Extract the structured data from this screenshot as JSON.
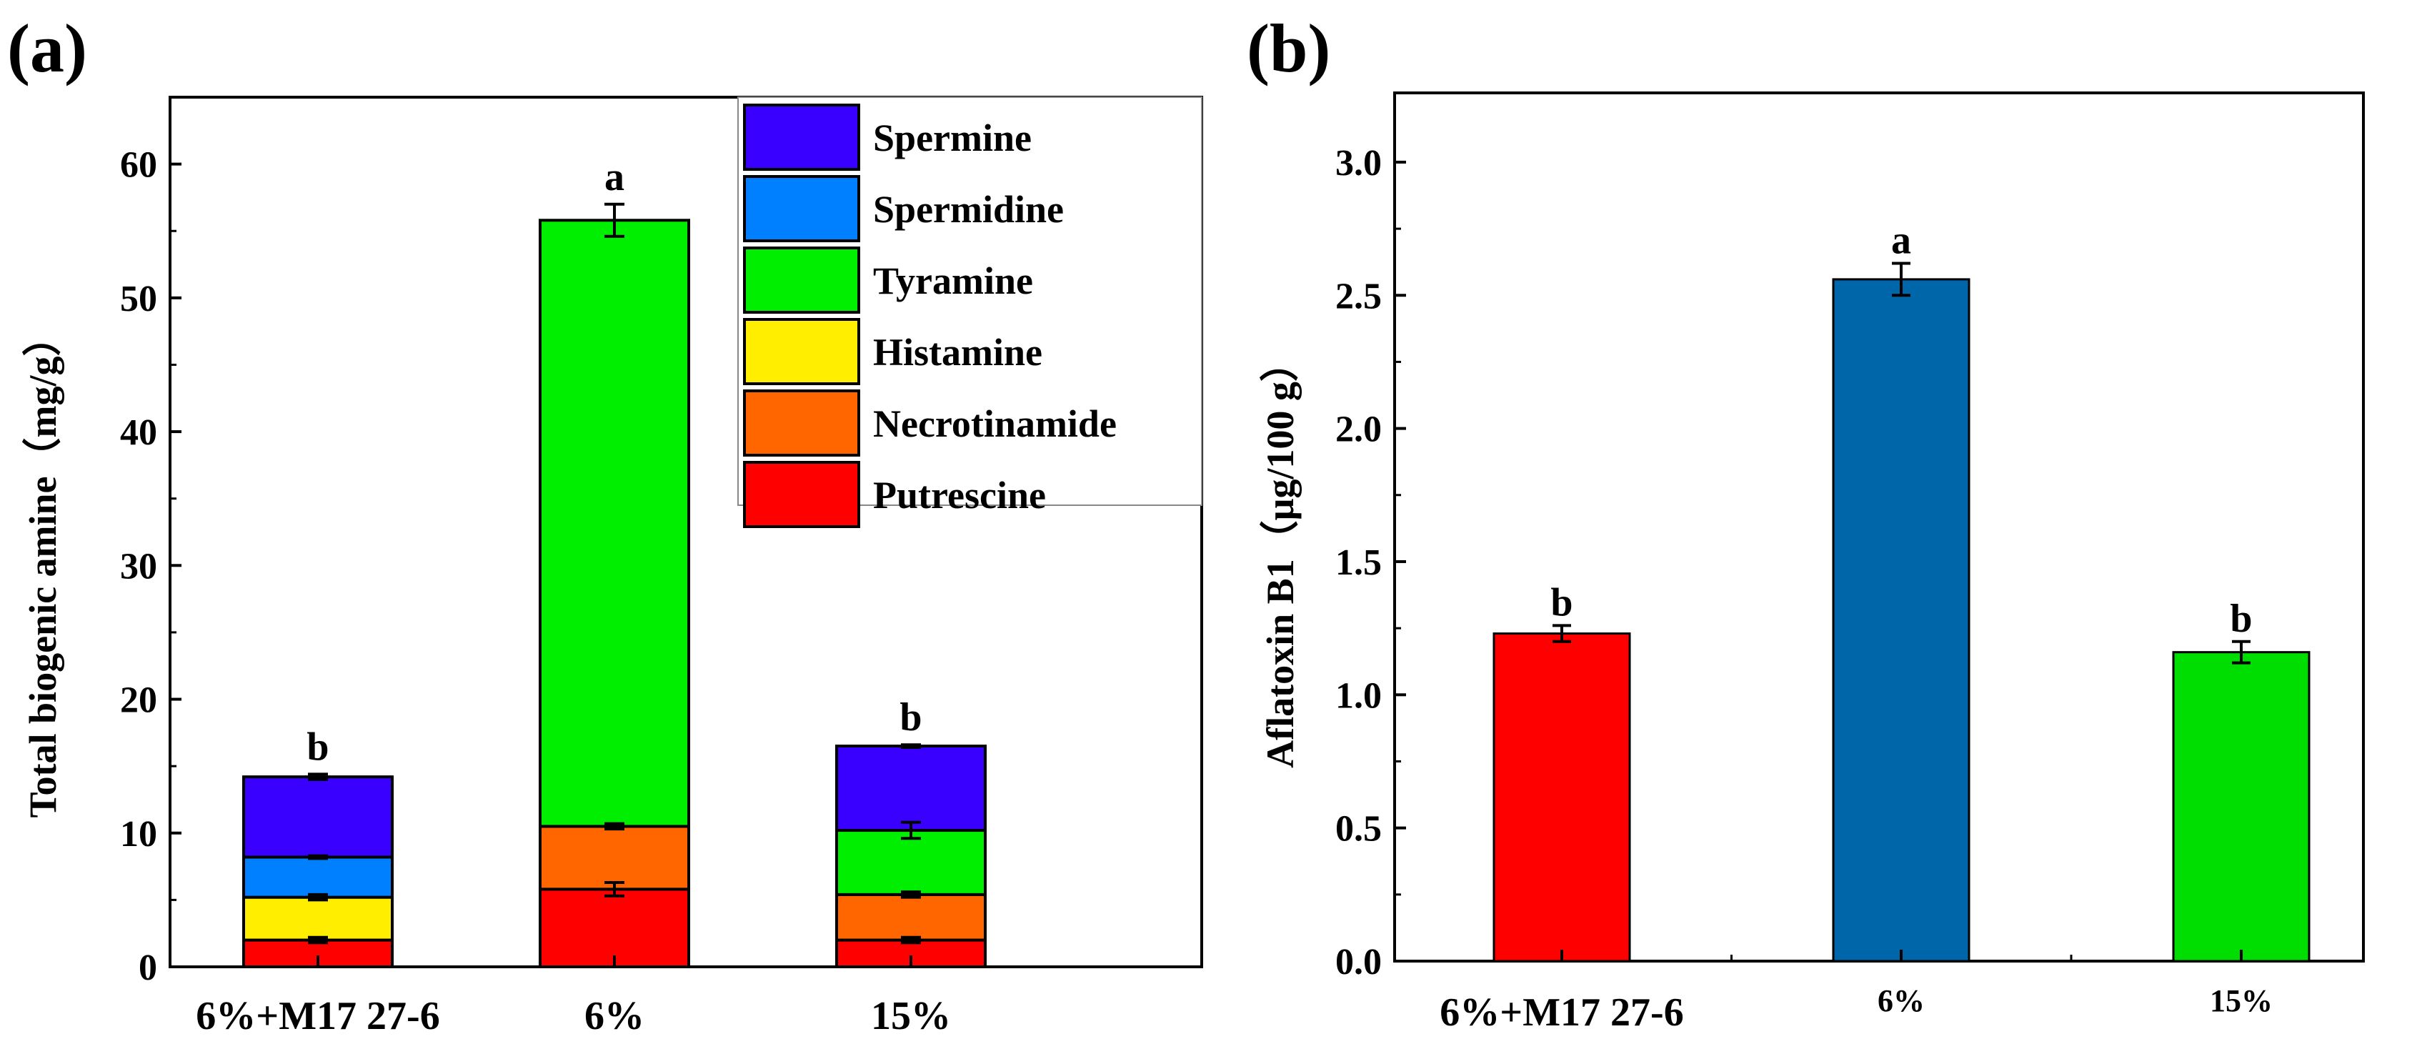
{
  "chart_data": [
    {
      "panel_label": "(a)",
      "type": "bar",
      "stacked": true,
      "title": "",
      "xlabel": "",
      "ylabel": "Total biogenic amine（mg/g）",
      "ylim": [
        0,
        65
      ],
      "yticks": [
        0,
        10,
        20,
        30,
        40,
        50,
        60
      ],
      "categories": [
        "6%+M17 27-6",
        "6%",
        "15%"
      ],
      "series": [
        {
          "name": "Putrescine",
          "color": "#ff0000",
          "values": [
            2.0,
            5.8,
            2.0
          ],
          "errors": [
            0.2,
            0.5,
            0.2
          ]
        },
        {
          "name": "Necrotinamide",
          "color": "#ff6600",
          "values": [
            0,
            4.7,
            3.4
          ],
          "errors": [
            0,
            0.2,
            0.2
          ]
        },
        {
          "name": "Histamine",
          "color": "#ffee00",
          "values": [
            3.2,
            0,
            0
          ],
          "errors": [
            0.2,
            0,
            0
          ]
        },
        {
          "name": "Tyramine",
          "color": "#00ee00",
          "values": [
            0,
            45.3,
            4.8
          ],
          "errors": [
            0,
            1.2,
            0.6
          ]
        },
        {
          "name": "Spermidine",
          "color": "#0080ff",
          "values": [
            3.0,
            0,
            0
          ],
          "errors": [
            0.1,
            0,
            0
          ]
        },
        {
          "name": "Spermine",
          "color": "#3a00ff",
          "values": [
            6.0,
            0,
            6.3
          ],
          "errors": [
            0.2,
            0,
            0.1
          ]
        }
      ],
      "legend_order": [
        "Spermine",
        "Spermidine",
        "Tyramine",
        "Histamine",
        "Necrotinamide",
        "Putrescine"
      ],
      "legend_position": "top-right",
      "annotations": [
        "b",
        "a",
        "b"
      ]
    },
    {
      "panel_label": "(b)",
      "type": "bar",
      "title": "",
      "xlabel": "",
      "ylabel": "Aflatoxin B1（μg/100 g）",
      "ylim": [
        0,
        3.26
      ],
      "yticks": [
        "0.0",
        "0.5",
        "1.0",
        "1.5",
        "2.0",
        "2.5",
        "3.0"
      ],
      "categories": [
        "6%+M17 27-6",
        "6%",
        "15%"
      ],
      "values": [
        1.23,
        2.56,
        1.16
      ],
      "errors": [
        0.03,
        0.06,
        0.04
      ],
      "colors": [
        "#ff0000",
        "#0066aa",
        "#00dd00"
      ],
      "annotations": [
        "b",
        "a",
        "b"
      ]
    }
  ]
}
